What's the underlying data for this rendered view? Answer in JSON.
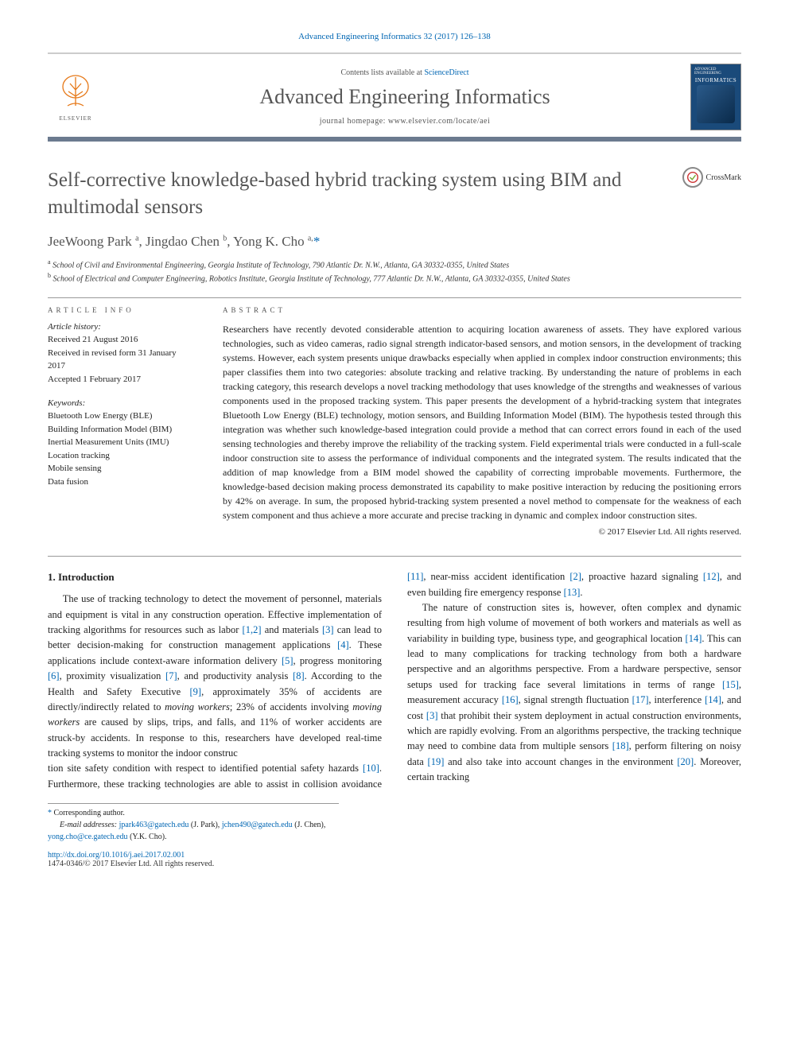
{
  "citation": "Advanced Engineering Informatics 32 (2017) 126–138",
  "masthead": {
    "contents_prefix": "Contents lists available at ",
    "contents_link": "ScienceDirect",
    "journal": "Advanced Engineering Informatics",
    "homepage": "journal homepage: www.elsevier.com/locate/aei",
    "publisher": "ELSEVIER",
    "cover_top": "ADVANCED ENGINEERING",
    "cover_word": "INFORMATICS"
  },
  "title": "Self-corrective knowledge-based hybrid tracking system using BIM and multimodal sensors",
  "crossmark": "CrossMark",
  "authors_html": "JeeWoong Park <sup>a</sup>, Jingdao Chen <sup>b</sup>, Yong K. Cho <sup>a,</sup><span class='corr'>*</span>",
  "affiliations": [
    {
      "sup": "a",
      "text": "School of Civil and Environmental Engineering, Georgia Institute of Technology, 790 Atlantic Dr. N.W., Atlanta, GA 30332-0355, United States"
    },
    {
      "sup": "b",
      "text": "School of Electrical and Computer Engineering, Robotics Institute, Georgia Institute of Technology, 777 Atlantic Dr. N.W., Atlanta, GA 30332-0355, United States"
    }
  ],
  "info_label": "article info",
  "abstract_label": "abstract",
  "history_label": "Article history:",
  "history": [
    "Received 21 August 2016",
    "Received in revised form 31 January 2017",
    "Accepted 1 February 2017"
  ],
  "kw_label": "Keywords:",
  "keywords": [
    "Bluetooth Low Energy (BLE)",
    "Building Information Model (BIM)",
    "Inertial Measurement Units (IMU)",
    "Location tracking",
    "Mobile sensing",
    "Data fusion"
  ],
  "abstract": "Researchers have recently devoted considerable attention to acquiring location awareness of assets. They have explored various technologies, such as video cameras, radio signal strength indicator-based sensors, and motion sensors, in the development of tracking systems. However, each system presents unique drawbacks especially when applied in complex indoor construction environments; this paper classifies them into two categories: absolute tracking and relative tracking. By understanding the nature of problems in each tracking category, this research develops a novel tracking methodology that uses knowledge of the strengths and weaknesses of various components used in the proposed tracking system. This paper presents the development of a hybrid-tracking system that integrates Bluetooth Low Energy (BLE) technology, motion sensors, and Building Information Model (BIM). The hypothesis tested through this integration was whether such knowledge-based integration could provide a method that can correct errors found in each of the used sensing technologies and thereby improve the reliability of the tracking system. Field experimental trials were conducted in a full-scale indoor construction site to assess the performance of individual components and the integrated system. The results indicated that the addition of map knowledge from a BIM model showed the capability of correcting improbable movements. Furthermore, the knowledge-based decision making process demonstrated its capability to make positive interaction by reducing the positioning errors by 42% on average. In sum, the proposed hybrid-tracking system presented a novel method to compensate for the weakness of each system component and thus achieve a more accurate and precise tracking in dynamic and complex indoor construction sites.",
  "copyright": "© 2017 Elsevier Ltd. All rights reserved.",
  "intro_heading": "1. Introduction",
  "intro_p1": "The use of tracking technology to detect the movement of personnel, materials and equipment is vital in any construction operation. Effective implementation of tracking algorithms for resources such as labor [1,2] and materials [3] can lead to better decision-making for construction management applications [4]. These applications include context-aware information delivery [5], progress monitoring [6], proximity visualization [7], and productivity analysis [8]. According to the Health and Safety Executive [9], approximately 35% of accidents are directly/indirectly related to moving workers; 23% of accidents involving moving workers are caused by slips, trips, and falls, and 11% of worker accidents are struck-by accidents. In response to this, researchers have developed real-time tracking systems to monitor the indoor construc",
  "intro_p2": "tion site safety condition with respect to identified potential safety hazards [10]. Furthermore, these tracking technologies are able to assist in collision avoidance [11], near-miss accident identification [2], proactive hazard signaling [12], and even building fire emergency response [13].",
  "intro_p3": "The nature of construction sites is, however, often complex and dynamic resulting from high volume of movement of both workers and materials as well as variability in building type, business type, and geographical location [14]. This can lead to many complications for tracking technology from both a hardware perspective and an algorithms perspective. From a hardware perspective, sensor setups used for tracking face several limitations in terms of range [15], measurement accuracy [16], signal strength fluctuation [17], interference [14], and cost [3] that prohibit their system deployment in actual construction environments, which are rapidly evolving. From an algorithms perspective, the tracking technique may need to combine data from multiple sensors [18], perform filtering on noisy data [19] and also take into account changes in the environment [20]. Moreover, certain tracking",
  "refs": {
    "r1": "[1,2]",
    "r2": "[3]",
    "r3": "[4]",
    "r4": "[5]",
    "r5": "[6]",
    "r6": "[7]",
    "r7": "[8]",
    "r8": "[9]",
    "r9": "[10]",
    "r10": "[11]",
    "r11": "[2]",
    "r12": "[12]",
    "r13": "[13]",
    "r14": "[14]",
    "r15": "[15]",
    "r16": "[16]",
    "r17": "[17]",
    "r18": "[14]",
    "r19": "[3]",
    "r20": "[18]",
    "r21": "[19]",
    "r22": "[20]"
  },
  "footnote": {
    "star": "*",
    "corr": "Corresponding author.",
    "email_label": "E-mail addresses:",
    "e1": "jpark463@gatech.edu",
    "n1": "(J. Park),",
    "e2": "jchen490@gatech.edu",
    "n2": "(J. Chen),",
    "e3": "yong.cho@ce.gatech.edu",
    "n3": "(Y.K. Cho)."
  },
  "footer": {
    "doi": "http://dx.doi.org/10.1016/j.aei.2017.02.001",
    "issn": "1474-0346/© 2017 Elsevier Ltd. All rights reserved."
  },
  "colors": {
    "link": "#0066b3",
    "rule": "#6b7a8f"
  }
}
